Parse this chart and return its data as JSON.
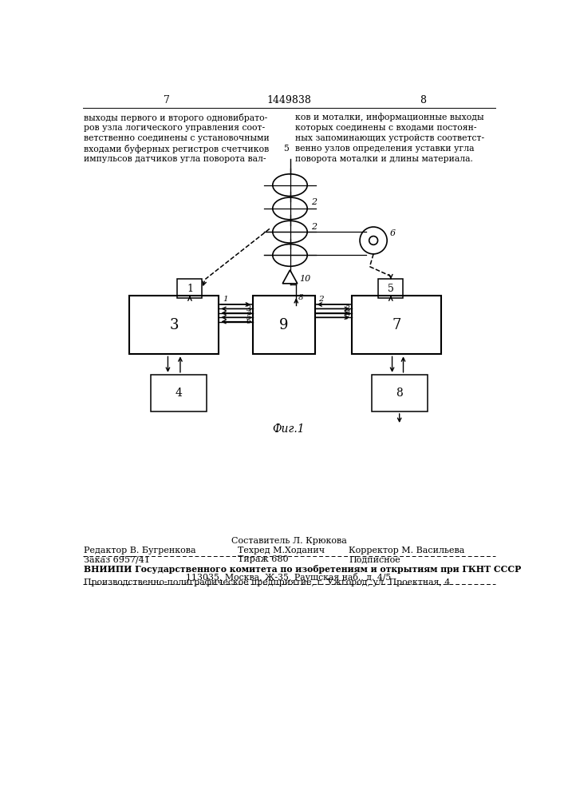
{
  "patent_number": "1449838",
  "page_left": "7",
  "page_right": "8",
  "text_left": "выходы первого и второго одновибрато-\nров узла логического управления соот-\nветственно соединены с установочными\nвходами буферных регистров счетчиков\nимпульсов датчиков угла поворота вал-",
  "text_right": "ков и моталки, информационные выходы\nкоторых соединены с входами постоян-\nных запоминающих устройств соответст-\nвенно узлов определения уставки угла\nповорота моталки и длины материала.",
  "line_number": "5",
  "fig_label": "Фиг.1",
  "footer_composer": "Составитель Л. Крюкова",
  "footer_editor": "Редактор В. Бугренкова",
  "footer_techred": "Техред М.Ходанич",
  "footer_corrector": "Корректор М. Васильева",
  "footer_order": "Заказ 6957/41",
  "footer_tirazh": "Тираж 680",
  "footer_podp": "Подписное",
  "footer_vniipи": "ВНИИПИ Государственного комитета по изобретениям и открытиям при ГКНТ СССР",
  "footer_addr": "113035, Москва, Ж-35, Раушская наб., д. 4/5",
  "footer_ppр": "Производственно-полиграфическое предприятие, г. Ужгород, ул. Проектная, 4",
  "bg_color": "#ffffff"
}
